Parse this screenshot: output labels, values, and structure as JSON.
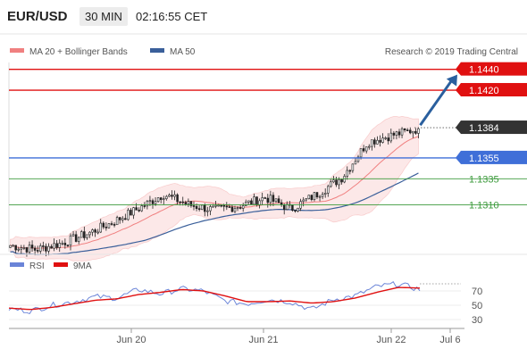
{
  "header": {
    "symbol": "EUR/USD",
    "timeframe": "30 MIN",
    "time": "02:16:55 CET"
  },
  "legend": {
    "ma20_bb": "MA 20 + Bollinger Bands",
    "ma50": "MA 50",
    "copyright": "Research © 2019 Trading Central",
    "rsi": "RSI",
    "ma9": "9MA"
  },
  "colors": {
    "resistance": "#e01010",
    "pivot": "#3f6fd8",
    "support": "#3b9a3b",
    "last_price_bg": "#333333",
    "ma20_bb": "#f08080",
    "ma50": "#3a5f9a",
    "rsi": "#6a84d8",
    "rsi_ma9": "#e01010",
    "forecast_arrow": "#2a5f9e"
  },
  "chart_data": [
    {
      "type": "candlestick",
      "title": "EUR/USD",
      "timeframe": "30 MIN",
      "x_tick_labels": [
        "Jun 20",
        "Jun 21",
        "Jun 22",
        "Jul 6"
      ],
      "y_range_approx": [
        1.1265,
        1.145
      ],
      "levels": [
        {
          "value": "1.1440",
          "kind": "resistance"
        },
        {
          "value": "1.1420",
          "kind": "resistance"
        },
        {
          "value": "1.1384",
          "kind": "last"
        },
        {
          "value": "1.1355",
          "kind": "pivot"
        },
        {
          "value": "1.1335",
          "kind": "support"
        },
        {
          "value": "1.1310",
          "kind": "support"
        }
      ],
      "price_path_approx": [
        {
          "x": "Jun 19",
          "y": 1.1271
        },
        {
          "x": "Jun 19",
          "y": 1.1267
        },
        {
          "x": "Jun 20",
          "y": 1.1273
        },
        {
          "x": "Jun 20",
          "y": 1.1282
        },
        {
          "x": "Jun 20",
          "y": 1.1293
        },
        {
          "x": "Jun 20",
          "y": 1.1306
        },
        {
          "x": "Jun 20",
          "y": 1.132
        },
        {
          "x": "Jun 21",
          "y": 1.131
        },
        {
          "x": "Jun 21",
          "y": 1.1305
        },
        {
          "x": "Jun 21",
          "y": 1.1309
        },
        {
          "x": "Jun 21",
          "y": 1.1317
        },
        {
          "x": "Jun 21",
          "y": 1.1306
        },
        {
          "x": "Jun 21",
          "y": 1.132
        },
        {
          "x": "Jun 22",
          "y": 1.1336
        },
        {
          "x": "Jun 22",
          "y": 1.137
        },
        {
          "x": "Jun 22",
          "y": 1.1377
        },
        {
          "x": "Jun 22",
          "y": 1.1383
        }
      ],
      "forecast": "arrow up toward 1.1440",
      "indicators": [
        "MA 20 + Bollinger Bands",
        "MA 50"
      ]
    },
    {
      "type": "line",
      "title": "RSI",
      "series": [
        {
          "name": "RSI",
          "values": [
            45,
            42,
            50,
            55,
            62,
            60,
            72,
            66,
            73,
            70,
            56,
            52,
            58,
            55,
            44,
            58,
            63,
            76,
            80,
            72
          ]
        },
        {
          "name": "9MA",
          "values": [
            46,
            44,
            47,
            52,
            57,
            59,
            65,
            68,
            72,
            70,
            63,
            55,
            55,
            56,
            53,
            55,
            60,
            68,
            75,
            74
          ]
        }
      ],
      "y_ticks": [
        "70",
        "50",
        "30"
      ],
      "ylim": [
        20,
        90
      ]
    }
  ]
}
